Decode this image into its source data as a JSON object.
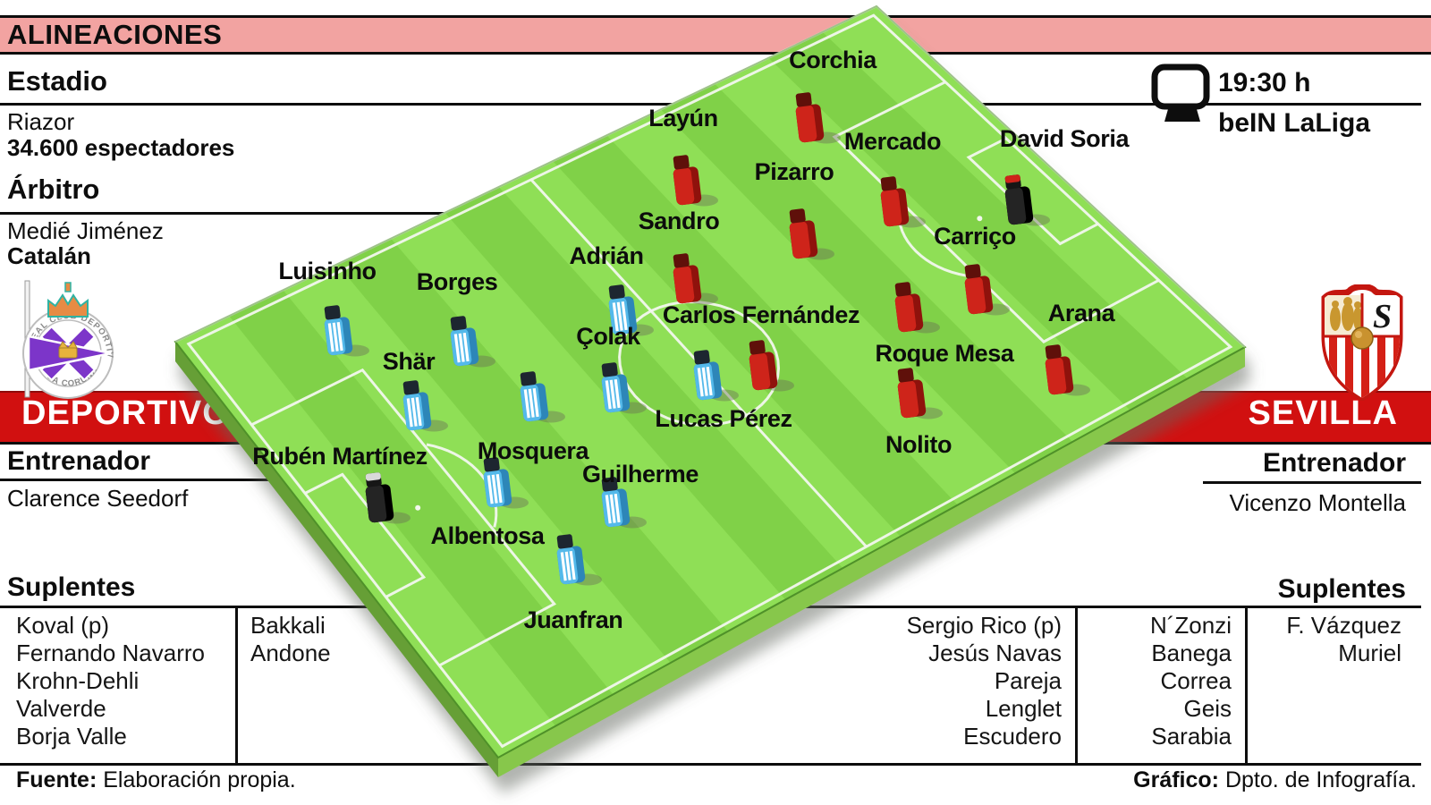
{
  "header": {
    "title": "ALINEACIONES"
  },
  "broadcast": {
    "time": "19:30 h",
    "channel": "beIN LaLiga"
  },
  "match_info": {
    "estadio_label": "Estadio",
    "stadium": "Riazor",
    "attendance": "34.600 espectadores",
    "arbitro_label": "Árbitro",
    "referee": "Medié Jiménez",
    "referee_origin": "Catalán"
  },
  "teams": {
    "deportivo": {
      "name": "DEPORTIVO",
      "crest_top_text": "REAL CLUB DEPORTIVO",
      "crest_bottom_text": "LA CORUÑA",
      "entrenador_label": "Entrenador",
      "coach": "Clarence Seedorf",
      "suplentes_label": "Suplentes",
      "subs_col1": [
        "Koval (p)",
        "Fernando Navarro",
        "Krohn-Dehli",
        "Valverde",
        "Borja Valle"
      ],
      "subs_col2": [
        "Bakkali",
        "Andone"
      ]
    },
    "sevilla": {
      "name": "SEVILLA",
      "crest_monogram": "S",
      "entrenador_label": "Entrenador",
      "coach": "Vicenzo Montella",
      "suplentes_label": "Suplentes",
      "subs_col1": [
        "Sergio Rico (p)",
        "Jesús Navas",
        "Pareja",
        "Lenglet",
        "Escudero"
      ],
      "subs_col2": [
        "N´Zonzi",
        "Banega",
        "Correa",
        "Geis",
        "Sarabia"
      ],
      "subs_col3": [
        "F. Vázquez",
        "Muriel"
      ]
    }
  },
  "lineups": {
    "deportivo": [
      {
        "name": "Rubén Martínez",
        "gk": true,
        "patch": "light",
        "label": [
          380,
          512
        ],
        "fig": [
          428,
          583
        ]
      },
      {
        "name": "Luisinho",
        "label": [
          366,
          305
        ],
        "fig": [
          382,
          396
        ]
      },
      {
        "name": "Borges",
        "label": [
          511,
          317
        ],
        "fig": [
          523,
          408
        ]
      },
      {
        "name": "Shär",
        "label": [
          457,
          406
        ],
        "fig": [
          470,
          480
        ]
      },
      {
        "name": "Albentosa",
        "label": [
          545,
          601
        ],
        "fig": [
          560,
          566
        ]
      },
      {
        "name": "Mosquera",
        "label": [
          596,
          506
        ],
        "fig": [
          601,
          470
        ]
      },
      {
        "name": "Adrián",
        "label": [
          678,
          288
        ],
        "fig": [
          700,
          373
        ]
      },
      {
        "name": "Çolak",
        "label": [
          680,
          378
        ],
        "fig": [
          692,
          460
        ]
      },
      {
        "name": "Guilherme",
        "label": [
          716,
          532
        ],
        "fig": [
          692,
          588
        ]
      },
      {
        "name": "Juanfran",
        "label": [
          641,
          695
        ],
        "fig": [
          642,
          652
        ]
      },
      {
        "name": "Lucas Pérez",
        "label": [
          809,
          470
        ],
        "fig": [
          795,
          446
        ]
      }
    ],
    "sevilla": [
      {
        "name": "David Soria",
        "gk": true,
        "patch": "red",
        "label": [
          1190,
          157
        ],
        "fig": [
          1143,
          250
        ]
      },
      {
        "name": "Corchia",
        "label": [
          931,
          69
        ],
        "fig": [
          909,
          158
        ]
      },
      {
        "name": "Layún",
        "label": [
          764,
          134
        ],
        "fig": [
          772,
          228
        ]
      },
      {
        "name": "Mercado",
        "label": [
          998,
          160
        ],
        "fig": [
          1004,
          252
        ]
      },
      {
        "name": "Pizarro",
        "label": [
          888,
          194
        ],
        "fig": [
          902,
          288
        ]
      },
      {
        "name": "Sandro",
        "label": [
          759,
          249
        ],
        "fig": [
          772,
          338
        ]
      },
      {
        "name": "Carriço",
        "label": [
          1090,
          266
        ],
        "fig": [
          1098,
          350
        ]
      },
      {
        "name": "Roque Mesa",
        "label": [
          1056,
          397
        ],
        "fig": [
          1020,
          370
        ]
      },
      {
        "name": "Carlos Fernández",
        "label": [
          851,
          354
        ],
        "fig": [
          857,
          435
        ]
      },
      {
        "name": "Arana",
        "label": [
          1209,
          352
        ],
        "fig": [
          1188,
          440
        ]
      },
      {
        "name": "Nolito",
        "label": [
          1027,
          499
        ],
        "fig": [
          1023,
          466
        ]
      }
    ]
  },
  "footer": {
    "source_label": "Fuente:",
    "source": "Elaboración propia.",
    "credit_label": "Gráfico:",
    "credit": "Dpto. de Infografía."
  },
  "colors": {
    "banner_pink": "#F2A3A1",
    "team_red": "#D11010",
    "pitch_light": "#8FDF56",
    "pitch_dark": "#80D148",
    "side_left": "#669F36",
    "side_right": "#87C74B",
    "edge": "#4F9129",
    "line_white": "#F2F7EE",
    "dep_body": "#54B9EA",
    "dep_dark": "#2D86B8",
    "dep_head": "#1d2630",
    "sev_body": "#CE241A",
    "sev_dark": "#8F120C",
    "sev_head": "#5f100a",
    "gk_body": "#242424",
    "gk_dark": "#000000",
    "gk_head": "#161616"
  }
}
